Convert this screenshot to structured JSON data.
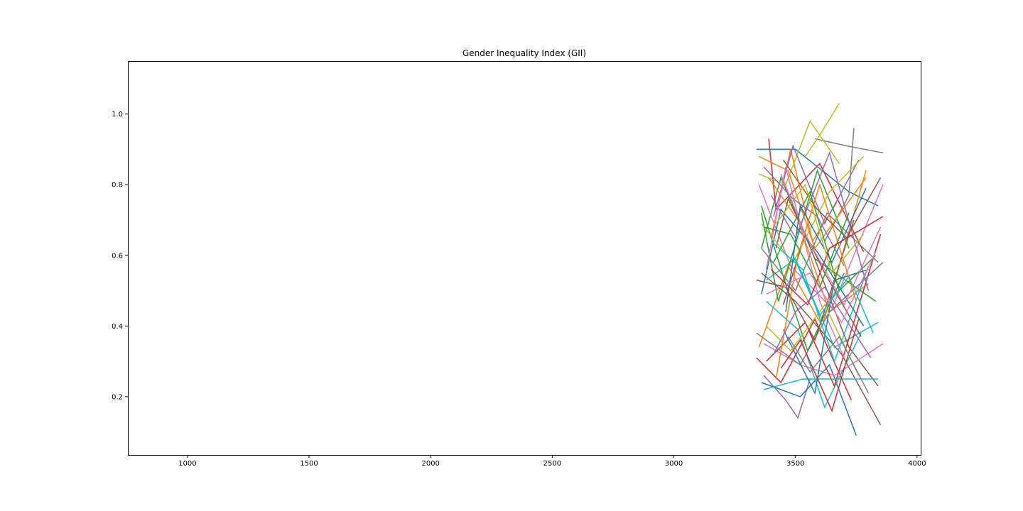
{
  "chart_data": {
    "type": "line",
    "title": "Gender Inequality Index (GII)",
    "xlabel": "",
    "ylabel": "",
    "xlim": [
      755,
      4015
    ],
    "ylim": [
      0.035,
      1.15
    ],
    "xticks": [
      1000,
      1500,
      2000,
      2500,
      3000,
      3500,
      4000
    ],
    "xtick_labels": [
      "1000",
      "1500",
      "2000",
      "2500",
      "3000",
      "3500",
      "4000"
    ],
    "yticks": [
      0.2,
      0.4,
      0.6,
      0.8,
      1.0
    ],
    "ytick_labels": [
      "0.2",
      "0.4",
      "0.6",
      "0.8",
      "1.0"
    ],
    "grid": false,
    "legend": "none",
    "palette": [
      "#1f77b4",
      "#ff7f0e",
      "#2ca02c",
      "#d62728",
      "#9467bd",
      "#8c564b",
      "#e377c2",
      "#7f7f7f",
      "#bcbd22",
      "#17becf"
    ],
    "series": [
      {
        "x": [
          3340,
          3500,
          3720,
          3840
        ],
        "y": [
          0.9,
          0.9,
          0.78,
          0.74
        ]
      },
      {
        "x": [
          3350,
          3470,
          3610,
          3790
        ],
        "y": [
          0.34,
          0.57,
          0.4,
          0.84
        ]
      },
      {
        "x": [
          3360,
          3440,
          3580,
          3830
        ],
        "y": [
          0.62,
          0.82,
          0.59,
          0.47
        ]
      },
      {
        "x": [
          3390,
          3420,
          3600,
          3780
        ],
        "y": [
          0.93,
          0.73,
          0.86,
          0.61
        ]
      },
      {
        "x": [
          3370,
          3460,
          3510,
          3560
        ],
        "y": [
          0.26,
          0.19,
          0.14,
          0.25
        ]
      },
      {
        "x": [
          3360,
          3500,
          3690,
          3850
        ],
        "y": [
          0.55,
          0.47,
          0.32,
          0.12
        ]
      },
      {
        "x": [
          3350,
          3480,
          3650,
          3860
        ],
        "y": [
          0.8,
          0.57,
          0.45,
          0.8
        ]
      },
      {
        "x": [
          3580,
          3710,
          3860
        ],
        "y": [
          0.93,
          0.91,
          0.89
        ]
      },
      {
        "x": [
          3350,
          3460,
          3560,
          3680
        ],
        "y": [
          0.83,
          0.8,
          0.98,
          0.86
        ]
      },
      {
        "x": [
          3380,
          3500,
          3660,
          3840
        ],
        "y": [
          0.53,
          0.59,
          0.34,
          0.41
        ]
      },
      {
        "x": [
          3360,
          3520,
          3640,
          3750
        ],
        "y": [
          0.24,
          0.2,
          0.29,
          0.09
        ]
      },
      {
        "x": [
          3400,
          3480,
          3570,
          3670
        ],
        "y": [
          0.65,
          0.9,
          0.64,
          0.75
        ]
      },
      {
        "x": [
          3360,
          3450,
          3550,
          3700
        ],
        "y": [
          0.74,
          0.54,
          0.33,
          0.55
        ]
      },
      {
        "x": [
          3340,
          3440,
          3580,
          3730
        ],
        "y": [
          0.31,
          0.24,
          0.42,
          0.19
        ]
      },
      {
        "x": [
          3410,
          3490,
          3620,
          3760
        ],
        "y": [
          0.71,
          0.91,
          0.69,
          0.87
        ]
      },
      {
        "x": [
          3450,
          3540,
          3720,
          3840
        ],
        "y": [
          0.46,
          0.66,
          0.34,
          0.23
        ]
      },
      {
        "x": [
          3370,
          3520,
          3660,
          3860
        ],
        "y": [
          0.35,
          0.29,
          0.26,
          0.35
        ]
      },
      {
        "x": [
          3620,
          3720,
          3740
        ],
        "y": [
          0.64,
          0.77,
          0.96
        ]
      },
      {
        "x": [
          3540,
          3600,
          3680
        ],
        "y": [
          0.88,
          0.94,
          1.03
        ]
      },
      {
        "x": [
          3380,
          3510,
          3620,
          3770
        ],
        "y": [
          0.47,
          0.39,
          0.17,
          0.38
        ]
      },
      {
        "x": [
          3360,
          3440,
          3590,
          3780
        ],
        "y": [
          0.49,
          0.73,
          0.61,
          0.4
        ]
      },
      {
        "x": [
          3390,
          3510,
          3640,
          3800
        ],
        "y": [
          0.82,
          0.7,
          0.44,
          0.52
        ]
      },
      {
        "x": [
          3360,
          3430,
          3590,
          3720
        ],
        "y": [
          0.72,
          0.47,
          0.84,
          0.62
        ]
      },
      {
        "x": [
          3380,
          3540,
          3660,
          3850
        ],
        "y": [
          0.3,
          0.41,
          0.23,
          0.66
        ]
      },
      {
        "x": [
          3400,
          3500,
          3640,
          3800
        ],
        "y": [
          0.77,
          0.65,
          0.89,
          0.5
        ]
      },
      {
        "x": [
          3420,
          3470,
          3620,
          3770
        ],
        "y": [
          0.62,
          0.76,
          0.55,
          0.37
        ]
      },
      {
        "x": [
          3380,
          3460,
          3600,
          3700
        ],
        "y": [
          0.56,
          0.85,
          0.47,
          0.31
        ]
      },
      {
        "x": [
          3340,
          3520,
          3640,
          3860
        ],
        "y": [
          0.38,
          0.29,
          0.44,
          0.58
        ]
      },
      {
        "x": [
          3360,
          3490,
          3640,
          3780
        ],
        "y": [
          0.69,
          0.58,
          0.78,
          0.88
        ]
      },
      {
        "x": [
          3370,
          3530,
          3700,
          3840
        ],
        "y": [
          0.22,
          0.25,
          0.25,
          0.25
        ]
      },
      {
        "x": [
          3450,
          3580,
          3660,
          3800
        ],
        "y": [
          0.39,
          0.21,
          0.53,
          0.56
        ]
      },
      {
        "x": [
          3350,
          3470,
          3580,
          3790
        ],
        "y": [
          0.88,
          0.84,
          0.62,
          0.82
        ]
      },
      {
        "x": [
          3410,
          3560,
          3680,
          3830
        ],
        "y": [
          0.58,
          0.78,
          0.5,
          0.6
        ]
      },
      {
        "x": [
          3440,
          3520,
          3650,
          3760
        ],
        "y": [
          0.28,
          0.36,
          0.16,
          0.42
        ]
      },
      {
        "x": [
          3370,
          3490,
          3590,
          3700
        ],
        "y": [
          0.85,
          0.76,
          0.71,
          0.57
        ]
      },
      {
        "x": [
          3340,
          3460,
          3580,
          3740
        ],
        "y": [
          0.53,
          0.51,
          0.36,
          0.7
        ]
      },
      {
        "x": [
          3440,
          3540,
          3700,
          3850
        ],
        "y": [
          0.83,
          0.66,
          0.46,
          0.68
        ]
      },
      {
        "x": [
          3360,
          3500,
          3630,
          3840
        ],
        "y": [
          0.62,
          0.5,
          0.72,
          0.58
        ]
      },
      {
        "x": [
          3380,
          3480,
          3620,
          3760
        ],
        "y": [
          0.4,
          0.33,
          0.46,
          0.26
        ]
      },
      {
        "x": [
          3400,
          3530,
          3660,
          3800
        ],
        "y": [
          0.64,
          0.56,
          0.3,
          0.57
        ]
      },
      {
        "x": [
          3460,
          3520,
          3650,
          3790
        ],
        "y": [
          0.44,
          0.74,
          0.58,
          0.79
        ]
      },
      {
        "x": [
          3420,
          3510,
          3600,
          3750
        ],
        "y": [
          0.25,
          0.6,
          0.8,
          0.47
        ]
      },
      {
        "x": [
          3370,
          3480,
          3600,
          3720
        ],
        "y": [
          0.68,
          0.66,
          0.51,
          0.72
        ]
      },
      {
        "x": [
          3400,
          3550,
          3640,
          3860
        ],
        "y": [
          0.56,
          0.46,
          0.62,
          0.71
        ]
      },
      {
        "x": [
          3410,
          3500,
          3620,
          3810
        ],
        "y": [
          0.32,
          0.44,
          0.51,
          0.31
        ]
      },
      {
        "x": [
          3450,
          3590,
          3710,
          3850
        ],
        "y": [
          0.87,
          0.73,
          0.65,
          0.82
        ]
      },
      {
        "x": [
          3380,
          3560,
          3690,
          3830
        ],
        "y": [
          0.49,
          0.55,
          0.41,
          0.61
        ]
      },
      {
        "x": [
          3470,
          3560,
          3680,
          3800
        ],
        "y": [
          0.37,
          0.27,
          0.37,
          0.21
        ]
      },
      {
        "x": [
          3420,
          3540,
          3650,
          3780
        ],
        "y": [
          0.69,
          0.8,
          0.55,
          0.66
        ]
      },
      {
        "x": [
          3490,
          3600,
          3720,
          3820
        ],
        "y": [
          0.6,
          0.43,
          0.54,
          0.38
        ]
      }
    ]
  }
}
